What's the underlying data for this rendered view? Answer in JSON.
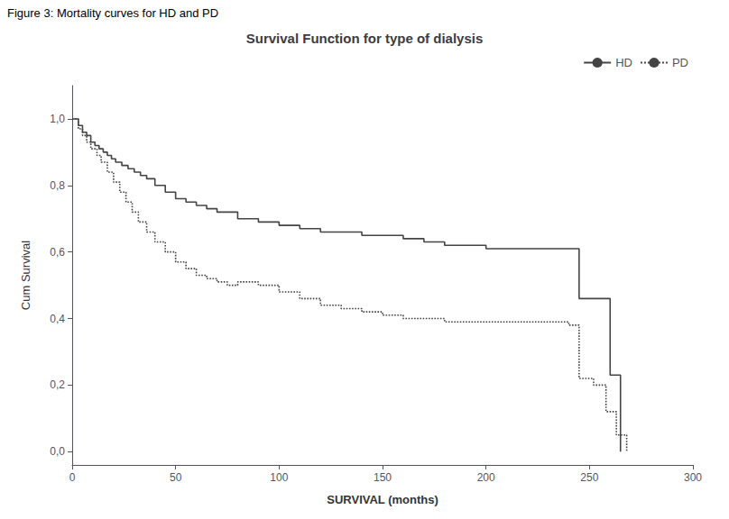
{
  "chart_data": {
    "type": "step",
    "title": "Survival Function for type of dialysis",
    "subtitle": "Figure 3: Mortality curves for HD and PD",
    "xlabel": "SURVIVAL (months)",
    "ylabel": "Cum Survival",
    "xlim": [
      0,
      300
    ],
    "ylim": [
      -0.04,
      1.1
    ],
    "xticks": [
      0,
      50,
      100,
      150,
      200,
      250,
      300
    ],
    "yticks": [
      {
        "value": 0.0,
        "label": "0,0"
      },
      {
        "value": 0.2,
        "label": "0,2"
      },
      {
        "value": 0.4,
        "label": "0,4"
      },
      {
        "value": 0.6,
        "label": "0,6"
      },
      {
        "value": 0.8,
        "label": "0,8"
      },
      {
        "value": 1.0,
        "label": "1,0"
      }
    ],
    "grid": false,
    "legend": "upper right",
    "series": [
      {
        "name": "HD",
        "color": "#444444",
        "line_style": "solid",
        "x": [
          0,
          3,
          5,
          7,
          9,
          11,
          13,
          15,
          17,
          19,
          21,
          24,
          27,
          30,
          33,
          36,
          40,
          45,
          50,
          55,
          60,
          65,
          70,
          80,
          90,
          100,
          110,
          120,
          130,
          140,
          150,
          160,
          170,
          180,
          190,
          200,
          210,
          220,
          230,
          240,
          245,
          248,
          260,
          265
        ],
        "values": [
          1.0,
          0.98,
          0.96,
          0.95,
          0.93,
          0.92,
          0.91,
          0.9,
          0.89,
          0.88,
          0.87,
          0.86,
          0.85,
          0.84,
          0.83,
          0.82,
          0.8,
          0.78,
          0.76,
          0.75,
          0.74,
          0.73,
          0.72,
          0.7,
          0.69,
          0.68,
          0.67,
          0.66,
          0.66,
          0.65,
          0.65,
          0.64,
          0.63,
          0.62,
          0.62,
          0.61,
          0.61,
          0.61,
          0.61,
          0.61,
          0.46,
          0.46,
          0.23,
          0.0
        ]
      },
      {
        "name": "PD",
        "color": "#444444",
        "line_style": "dotted",
        "x": [
          0,
          3,
          5,
          7,
          9,
          12,
          14,
          17,
          20,
          23,
          26,
          29,
          32,
          36,
          40,
          45,
          50,
          55,
          60,
          65,
          70,
          75,
          80,
          90,
          100,
          110,
          120,
          130,
          140,
          150,
          160,
          170,
          180,
          190,
          200,
          210,
          220,
          230,
          235,
          240,
          245,
          252,
          258,
          263,
          268
        ],
        "values": [
          1.0,
          0.97,
          0.95,
          0.93,
          0.91,
          0.89,
          0.87,
          0.84,
          0.81,
          0.78,
          0.75,
          0.72,
          0.69,
          0.66,
          0.63,
          0.6,
          0.57,
          0.55,
          0.53,
          0.52,
          0.51,
          0.5,
          0.51,
          0.5,
          0.48,
          0.46,
          0.44,
          0.43,
          0.42,
          0.41,
          0.4,
          0.4,
          0.39,
          0.39,
          0.39,
          0.39,
          0.39,
          0.39,
          0.39,
          0.38,
          0.22,
          0.2,
          0.12,
          0.05,
          0.0
        ]
      }
    ]
  }
}
